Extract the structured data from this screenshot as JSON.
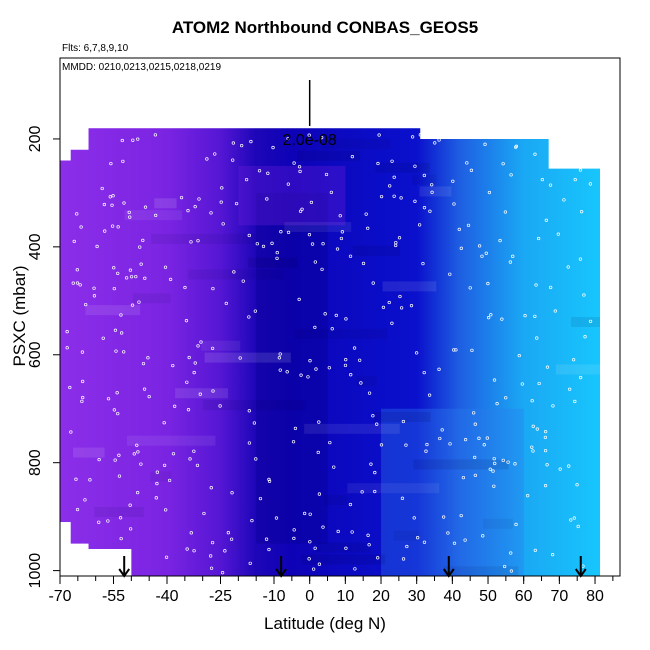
{
  "header": {
    "title": "ATOM2 Northbound CONBAS_GEOS5",
    "flights": "Flts: 6,7,8,9,10",
    "dates": "MMDD: 0210,0213,0215,0218,0219"
  },
  "chart_data": {
    "type": "heatmap",
    "title": "ATOM2 Northbound CONBAS_GEOS5",
    "xlabel": "Latitude (deg N)",
    "ylabel": "PSXC (mbar)",
    "xlim": [
      -70,
      87
    ],
    "ylim": [
      1010,
      50
    ],
    "x_ticks": [
      -70,
      -55,
      -40,
      -25,
      -10,
      0,
      10,
      20,
      30,
      40,
      50,
      60,
      70,
      80
    ],
    "y_ticks": [
      200,
      400,
      600,
      800,
      1000
    ],
    "scale_bar": {
      "label": "2.0e-08",
      "value": 2e-08
    },
    "colors": {
      "south_low": "#8b2be8",
      "mid": "#1a10cc",
      "deep": "#0a00b0",
      "north": "#1590f0",
      "north_light": "#19c0fa"
    },
    "gradient_stops": [
      {
        "lat": -70,
        "color": "#8c2ee9"
      },
      {
        "lat": -40,
        "color": "#7a24e2"
      },
      {
        "lat": -25,
        "color": "#5516d4"
      },
      {
        "lat": -15,
        "color": "#1d06b8"
      },
      {
        "lat": -5,
        "color": "#0e02b6"
      },
      {
        "lat": 10,
        "color": "#0b0ac2"
      },
      {
        "lat": 30,
        "color": "#0a10cc"
      },
      {
        "lat": 42,
        "color": "#1e5ee2"
      },
      {
        "lat": 60,
        "color": "#1aa8f4"
      },
      {
        "lat": 80,
        "color": "#18c4fc"
      }
    ],
    "coverage": [
      {
        "lat": -70,
        "top": 240,
        "bottom": 910
      },
      {
        "lat": -67,
        "top": 220,
        "bottom": 910
      },
      {
        "lat": -62,
        "top": 180,
        "bottom": 950
      },
      {
        "lat": -50,
        "top": 180,
        "bottom": 960
      },
      {
        "lat": -48,
        "top": 180,
        "bottom": 1010
      },
      {
        "lat": 10,
        "top": 180,
        "bottom": 1010
      },
      {
        "lat": 30,
        "top": 180,
        "bottom": 1010
      },
      {
        "lat": 31,
        "top": 200,
        "bottom": 1010
      },
      {
        "lat": 66,
        "top": 200,
        "bottom": 1010
      },
      {
        "lat": 67,
        "top": 255,
        "bottom": 1010
      },
      {
        "lat": 80,
        "top": 255,
        "bottom": 1010
      }
    ],
    "arrows_at_lat": [
      -52,
      -8,
      39,
      76
    ]
  }
}
